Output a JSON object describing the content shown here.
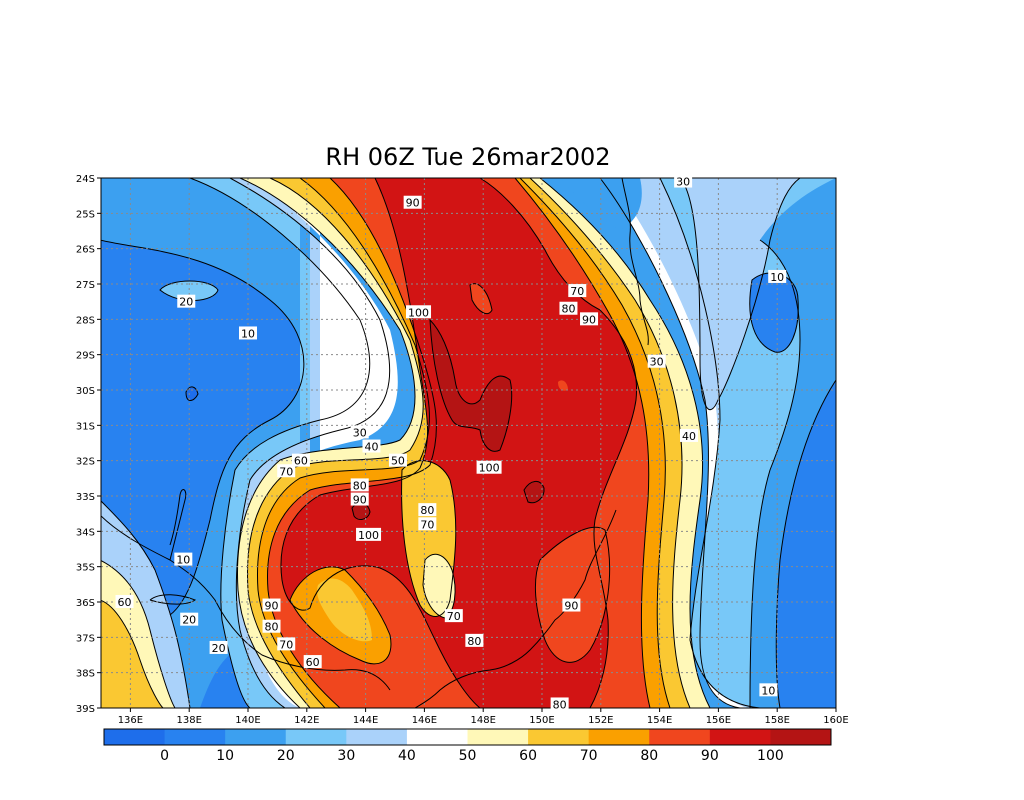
{
  "chart_data": {
    "type": "heatmap",
    "title": "RH 06Z Tue 26mar2002",
    "variable": "RH",
    "x_ticks": [
      "136E",
      "138E",
      "140E",
      "142E",
      "144E",
      "146E",
      "148E",
      "150E",
      "152E",
      "154E",
      "156E",
      "158E",
      "160E"
    ],
    "x_range": [
      135,
      160
    ],
    "y_ticks": [
      "24S",
      "25S",
      "26S",
      "27S",
      "28S",
      "29S",
      "30S",
      "31S",
      "32S",
      "33S",
      "34S",
      "35S",
      "36S",
      "37S",
      "38S",
      "39S"
    ],
    "y_range": [
      -39,
      -24
    ],
    "grid": true,
    "colorbar": {
      "placement": "bottom",
      "labels": [
        "0",
        "10",
        "20",
        "30",
        "40",
        "50",
        "60",
        "70",
        "80",
        "90",
        "100"
      ],
      "colors": [
        "#1e6eeb",
        "#2882f0",
        "#3ca0f0",
        "#78c8f8",
        "#aad2fa",
        "#ffffff",
        "#fff8b8",
        "#fac832",
        "#faa000",
        "#f0461e",
        "#d21414",
        "#b41414"
      ]
    },
    "contour_labels": [
      {
        "text": "30",
        "lon": 154.8,
        "lat": -24.1
      },
      {
        "text": "90",
        "lon": 145.6,
        "lat": -24.7
      },
      {
        "text": "10",
        "lon": 158.0,
        "lat": -26.8
      },
      {
        "text": "20",
        "lon": 137.9,
        "lat": -27.5
      },
      {
        "text": "70",
        "lon": 151.2,
        "lat": -27.2
      },
      {
        "text": "80",
        "lon": 150.9,
        "lat": -27.7
      },
      {
        "text": "90",
        "lon": 151.6,
        "lat": -28.0
      },
      {
        "text": "100",
        "lon": 145.8,
        "lat": -27.8
      },
      {
        "text": "10",
        "lon": 140.0,
        "lat": -28.4
      },
      {
        "text": "30",
        "lon": 153.9,
        "lat": -29.2
      },
      {
        "text": "30",
        "lon": 143.8,
        "lat": -31.2
      },
      {
        "text": "40",
        "lon": 144.2,
        "lat": -31.6
      },
      {
        "text": "40",
        "lon": 155.0,
        "lat": -31.3
      },
      {
        "text": "50",
        "lon": 145.1,
        "lat": -32.0
      },
      {
        "text": "60",
        "lon": 141.8,
        "lat": -32.0
      },
      {
        "text": "70",
        "lon": 141.3,
        "lat": -32.3
      },
      {
        "text": "100",
        "lon": 148.2,
        "lat": -32.2
      },
      {
        "text": "80",
        "lon": 143.8,
        "lat": -32.7
      },
      {
        "text": "90",
        "lon": 143.8,
        "lat": -33.1
      },
      {
        "text": "80",
        "lon": 146.1,
        "lat": -33.4
      },
      {
        "text": "70",
        "lon": 146.1,
        "lat": -33.8
      },
      {
        "text": "100",
        "lon": 144.1,
        "lat": -34.1
      },
      {
        "text": "10",
        "lon": 137.8,
        "lat": -34.8
      },
      {
        "text": "60",
        "lon": 135.8,
        "lat": -36.0
      },
      {
        "text": "90",
        "lon": 140.8,
        "lat": -36.1
      },
      {
        "text": "90",
        "lon": 151.0,
        "lat": -36.1
      },
      {
        "text": "20",
        "lon": 138.0,
        "lat": -36.5
      },
      {
        "text": "70",
        "lon": 147.0,
        "lat": -36.4
      },
      {
        "text": "80",
        "lon": 140.8,
        "lat": -36.7
      },
      {
        "text": "70",
        "lon": 141.3,
        "lat": -37.2
      },
      {
        "text": "80",
        "lon": 147.7,
        "lat": -37.1
      },
      {
        "text": "20",
        "lon": 139.0,
        "lat": -37.3
      },
      {
        "text": "60",
        "lon": 142.2,
        "lat": -37.7
      },
      {
        "text": "10",
        "lon": 157.7,
        "lat": -38.5
      },
      {
        "text": "80",
        "lon": 150.6,
        "lat": -38.9
      }
    ]
  }
}
